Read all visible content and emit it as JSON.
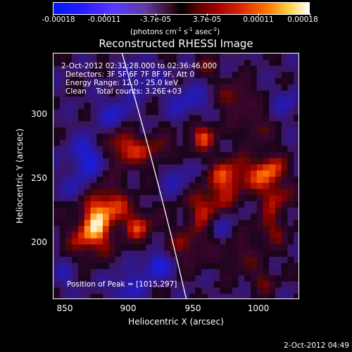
{
  "colorbar": {
    "ticks": [
      "-0.00018",
      "-0.00011",
      "-3.7e-05",
      "3.7e-05",
      "0.00011",
      "0.00018"
    ],
    "units_prefix": "(photons cm",
    "units_exp1": "-2",
    "units_mid1": " s",
    "units_exp2": "-1",
    "units_mid2": " asec",
    "units_exp3": "-2",
    "units_suffix": ")"
  },
  "title": "Reconstructed RHESSI Image",
  "info": {
    "time_range": "2-Oct-2012 02:32:28.000 to 02:36:46.000",
    "detectors": "Detectors: 3F 5F 6F 7F 8F 9F, Att 0",
    "energy_range": "Energy Range: 12.0 - 25.0 keV",
    "clean_counts": "Clean    Total counts: 3.26E+03",
    "peak_position": "Position of Peak = [1015,297]"
  },
  "x_axis": {
    "label": "Heliocentric X (arcsec)",
    "ticks": [
      "850",
      "900",
      "950",
      "1000"
    ],
    "range": [
      840,
      1040
    ]
  },
  "y_axis": {
    "label": "Heliocentric Y (arcsec)",
    "ticks": [
      "200",
      "250",
      "300"
    ],
    "range": [
      150,
      350
    ]
  },
  "image": {
    "colormap": "blue-purple-black-red-orange-yellow-white",
    "limb_curve": "solar limb (white line)"
  },
  "timestamp": "2-Oct-2012 04:49"
}
